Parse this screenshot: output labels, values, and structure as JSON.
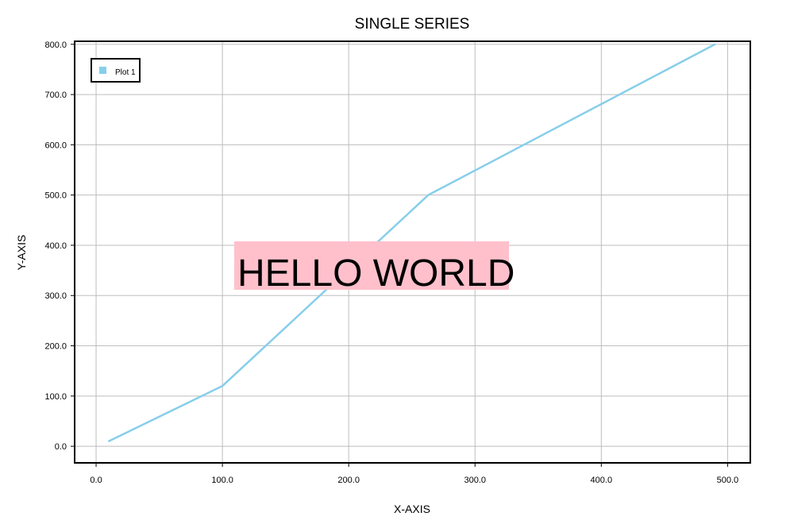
{
  "chart_data": {
    "type": "line",
    "title": "SINGLE SERIES",
    "xlabel": "X-AXIS",
    "ylabel": "Y-AXIS",
    "xlim": [
      -17,
      518
    ],
    "ylim": [
      -33,
      806
    ],
    "x_ticks": [
      0,
      100,
      200,
      300,
      400,
      500
    ],
    "x_tick_labels": [
      "0.0",
      "100.0",
      "200.0",
      "300.0",
      "400.0",
      "500.0"
    ],
    "y_ticks": [
      0,
      100,
      200,
      300,
      400,
      500,
      600,
      700,
      800
    ],
    "y_tick_labels": [
      "0.0",
      "100.0",
      "200.0",
      "300.0",
      "400.0",
      "500.0",
      "600.0",
      "700.0",
      "800.0"
    ],
    "grid": true,
    "legend_position": "top-left",
    "series": [
      {
        "name": "Plot 1",
        "color": "#87ceeb",
        "x": [
          10,
          100,
          263,
          490
        ],
        "y": [
          10,
          120,
          500,
          800
        ]
      }
    ],
    "annotation": {
      "text": "HELLO WORLD",
      "background": "#ffc0cb",
      "x": 110,
      "y": 365
    }
  }
}
